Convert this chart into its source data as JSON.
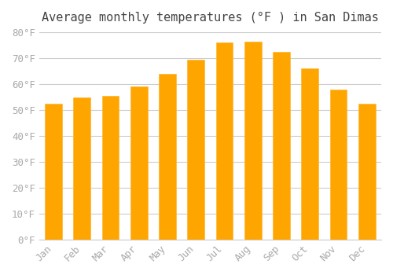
{
  "title": "Average monthly temperatures (°F ) in San Dimas",
  "months": [
    "Jan",
    "Feb",
    "Mar",
    "Apr",
    "May",
    "Jun",
    "Jul",
    "Aug",
    "Sep",
    "Oct",
    "Nov",
    "Dec"
  ],
  "values": [
    52.5,
    54.9,
    55.4,
    59.0,
    63.9,
    69.5,
    75.9,
    76.3,
    72.3,
    66.0,
    58.0,
    52.3
  ],
  "bar_color_main": "#FFA500",
  "bar_color_edge": "#FFB733",
  "ylim": [
    0,
    80
  ],
  "yticks": [
    0,
    10,
    20,
    30,
    40,
    50,
    60,
    70,
    80
  ],
  "background_color": "#ffffff",
  "grid_color": "#cccccc",
  "title_fontsize": 11,
  "tick_fontsize": 9,
  "title_font": "monospace",
  "tick_font": "monospace"
}
